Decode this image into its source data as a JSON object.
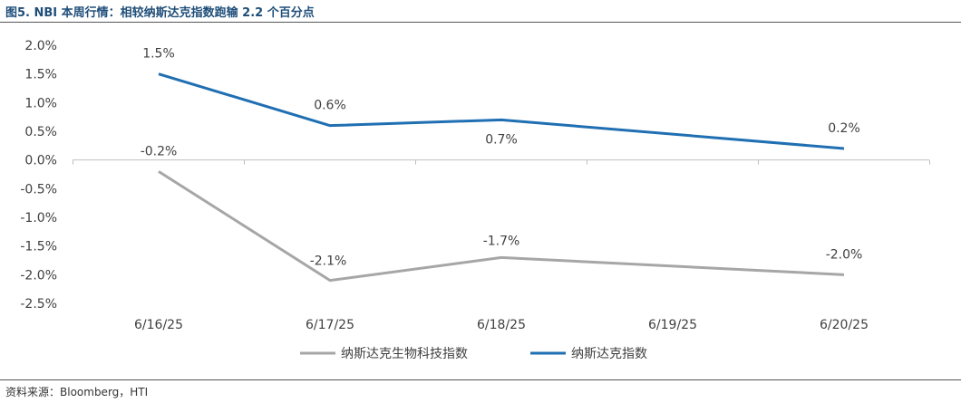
{
  "figure": {
    "caption": "图5. NBI 本周行情：相较纳斯达克指数跑输 2.2 个百分点",
    "source": "资料来源：Bloomberg，HTI"
  },
  "chart_data": {
    "type": "line",
    "categories": [
      "6/16/25",
      "6/17/25",
      "6/18/25",
      "6/19/25",
      "6/20/25"
    ],
    "y_ticks": [
      "2.0%",
      "1.5%",
      "1.0%",
      "0.5%",
      "0.0%",
      "-0.5%",
      "-1.0%",
      "-1.5%",
      "-2.0%",
      "-2.5%"
    ],
    "ylim": [
      -2.5,
      2.0
    ],
    "y_unit": "%",
    "grid": false,
    "legend_position": "bottom",
    "series": [
      {
        "name": "纳斯达克生物科技指数",
        "color": "#a6a6a6",
        "values": [
          -0.2,
          -2.1,
          -1.7,
          null,
          -2.0
        ],
        "labels": [
          "-0.2%",
          "-2.1%",
          "-1.7%",
          "",
          "-2.0%"
        ]
      },
      {
        "name": "纳斯达克指数",
        "color": "#1f6fb2",
        "values": [
          1.5,
          0.6,
          0.7,
          null,
          0.2
        ],
        "labels": [
          "1.5%",
          "0.6%",
          "0.7%",
          "",
          "0.2%"
        ]
      }
    ]
  }
}
